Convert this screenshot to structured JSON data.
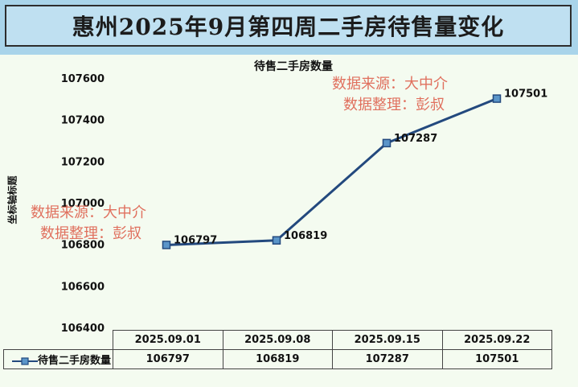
{
  "header": {
    "title": "惠州2025年9月第四周二手房待售量变化"
  },
  "watermarks": [
    {
      "line1": "数据来源：大中介",
      "line2": "数据整理：彭叔"
    },
    {
      "line1": "数据来源：大中介",
      "line2": "数据整理：彭叔"
    }
  ],
  "colors": {
    "line": "#23497e",
    "marker": "#5b95c9",
    "banner": "#a9d4ea",
    "plot_bg": "#f4fbf0",
    "watermark": "#e0705e"
  },
  "chart_data": {
    "type": "line",
    "title": "待售二手房数量",
    "xlabel": "",
    "ylabel": "坐标轴标题",
    "categories": [
      "2025.09.01",
      "2025.09.08",
      "2025.09.15",
      "2025.09.22"
    ],
    "series": [
      {
        "name": "待售二手房数量",
        "values": [
          106797,
          106819,
          107287,
          107501
        ]
      }
    ],
    "ylim": [
      106400,
      107600
    ],
    "yticks": [
      106400,
      106600,
      106800,
      107000,
      107200,
      107400,
      107600
    ],
    "grid": false,
    "legend": "data-table-left",
    "data_labels": [
      "106797",
      "106819",
      "107287",
      "107501"
    ]
  }
}
